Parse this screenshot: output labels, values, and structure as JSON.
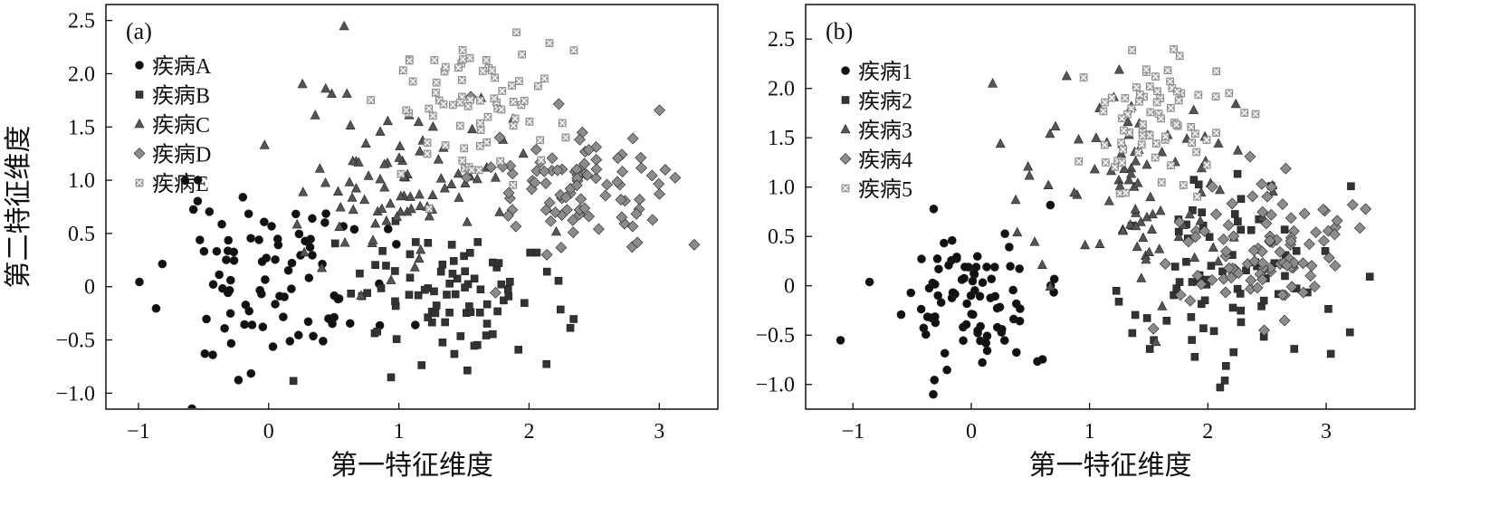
{
  "chart_data": [
    {
      "type": "scatter",
      "panel_label": "(a)",
      "xlabel": "第一特征维度",
      "ylabel": "第二特征维度",
      "xlim": [
        -1.25,
        3.45
      ],
      "ylim": [
        -1.15,
        2.65
      ],
      "xticks": [
        -1,
        0,
        1,
        2,
        3
      ],
      "xtick_labels": [
        "−1",
        "0",
        "1",
        "2",
        "3"
      ],
      "yticks": [
        -1.0,
        -0.5,
        0,
        0.5,
        1.0,
        1.5,
        2.0,
        2.5
      ],
      "ytick_labels": [
        "−1.0",
        "−0.5",
        "0",
        "0.5",
        "1.0",
        "1.5",
        "2.0",
        "2.5"
      ],
      "grid": false,
      "legend_position": "top-left",
      "series": [
        {
          "name": "疾病A",
          "marker": "circle",
          "color": "#111111",
          "cx": 0.0,
          "cy": 0.05,
          "sx": 0.42,
          "sy": 0.42,
          "n": 90,
          "seed": 11
        },
        {
          "name": "疾病B",
          "marker": "square",
          "color": "#333333",
          "cx": 1.35,
          "cy": -0.1,
          "sx": 0.45,
          "sy": 0.35,
          "n": 85,
          "seed": 23
        },
        {
          "name": "疾病C",
          "marker": "triangle",
          "color": "#555555",
          "cx": 1.05,
          "cy": 1.05,
          "sx": 0.4,
          "sy": 0.45,
          "n": 90,
          "seed": 37
        },
        {
          "name": "疾病D",
          "marker": "diamond",
          "color": "#8c8c8c",
          "cx": 2.45,
          "cy": 0.95,
          "sx": 0.35,
          "sy": 0.3,
          "n": 95,
          "seed": 41
        },
        {
          "name": "疾病E",
          "marker": "cross",
          "color": "#a8a8a8",
          "cx": 1.55,
          "cy": 1.65,
          "sx": 0.35,
          "sy": 0.32,
          "n": 75,
          "seed": 53
        }
      ]
    },
    {
      "type": "scatter",
      "panel_label": "(b)",
      "xlabel": "第一特征维度",
      "ylabel": "",
      "xlim": [
        -1.4,
        3.75
      ],
      "ylim": [
        -1.25,
        2.85
      ],
      "xticks": [
        -1,
        0,
        1,
        2,
        3
      ],
      "xtick_labels": [
        "−1",
        "0",
        "1",
        "2",
        "3"
      ],
      "yticks": [
        -1.0,
        -0.5,
        0,
        0.5,
        1.0,
        1.5,
        2.0,
        2.5
      ],
      "ytick_labels": [
        "−1.0",
        "−0.5",
        "0",
        "0.5",
        "1.0",
        "1.5",
        "2.0",
        "2.5"
      ],
      "grid": false,
      "legend_position": "top-left",
      "series": [
        {
          "name": "疾病1",
          "marker": "circle",
          "color": "#111111",
          "cx": -0.05,
          "cy": -0.1,
          "sx": 0.4,
          "sy": 0.4,
          "n": 90,
          "seed": 61
        },
        {
          "name": "疾病2",
          "marker": "square",
          "color": "#333333",
          "cx": 2.2,
          "cy": 0.05,
          "sx": 0.5,
          "sy": 0.5,
          "n": 80,
          "seed": 73
        },
        {
          "name": "疾病3",
          "marker": "triangle",
          "color": "#555555",
          "cx": 1.3,
          "cy": 1.0,
          "sx": 0.5,
          "sy": 0.5,
          "n": 90,
          "seed": 89
        },
        {
          "name": "疾病4",
          "marker": "diamond",
          "color": "#8c8c8c",
          "cx": 2.45,
          "cy": 0.35,
          "sx": 0.4,
          "sy": 0.35,
          "n": 95,
          "seed": 97
        },
        {
          "name": "疾病5",
          "marker": "cross",
          "color": "#a8a8a8",
          "cx": 1.55,
          "cy": 1.65,
          "sx": 0.35,
          "sy": 0.35,
          "n": 75,
          "seed": 103
        }
      ]
    }
  ]
}
